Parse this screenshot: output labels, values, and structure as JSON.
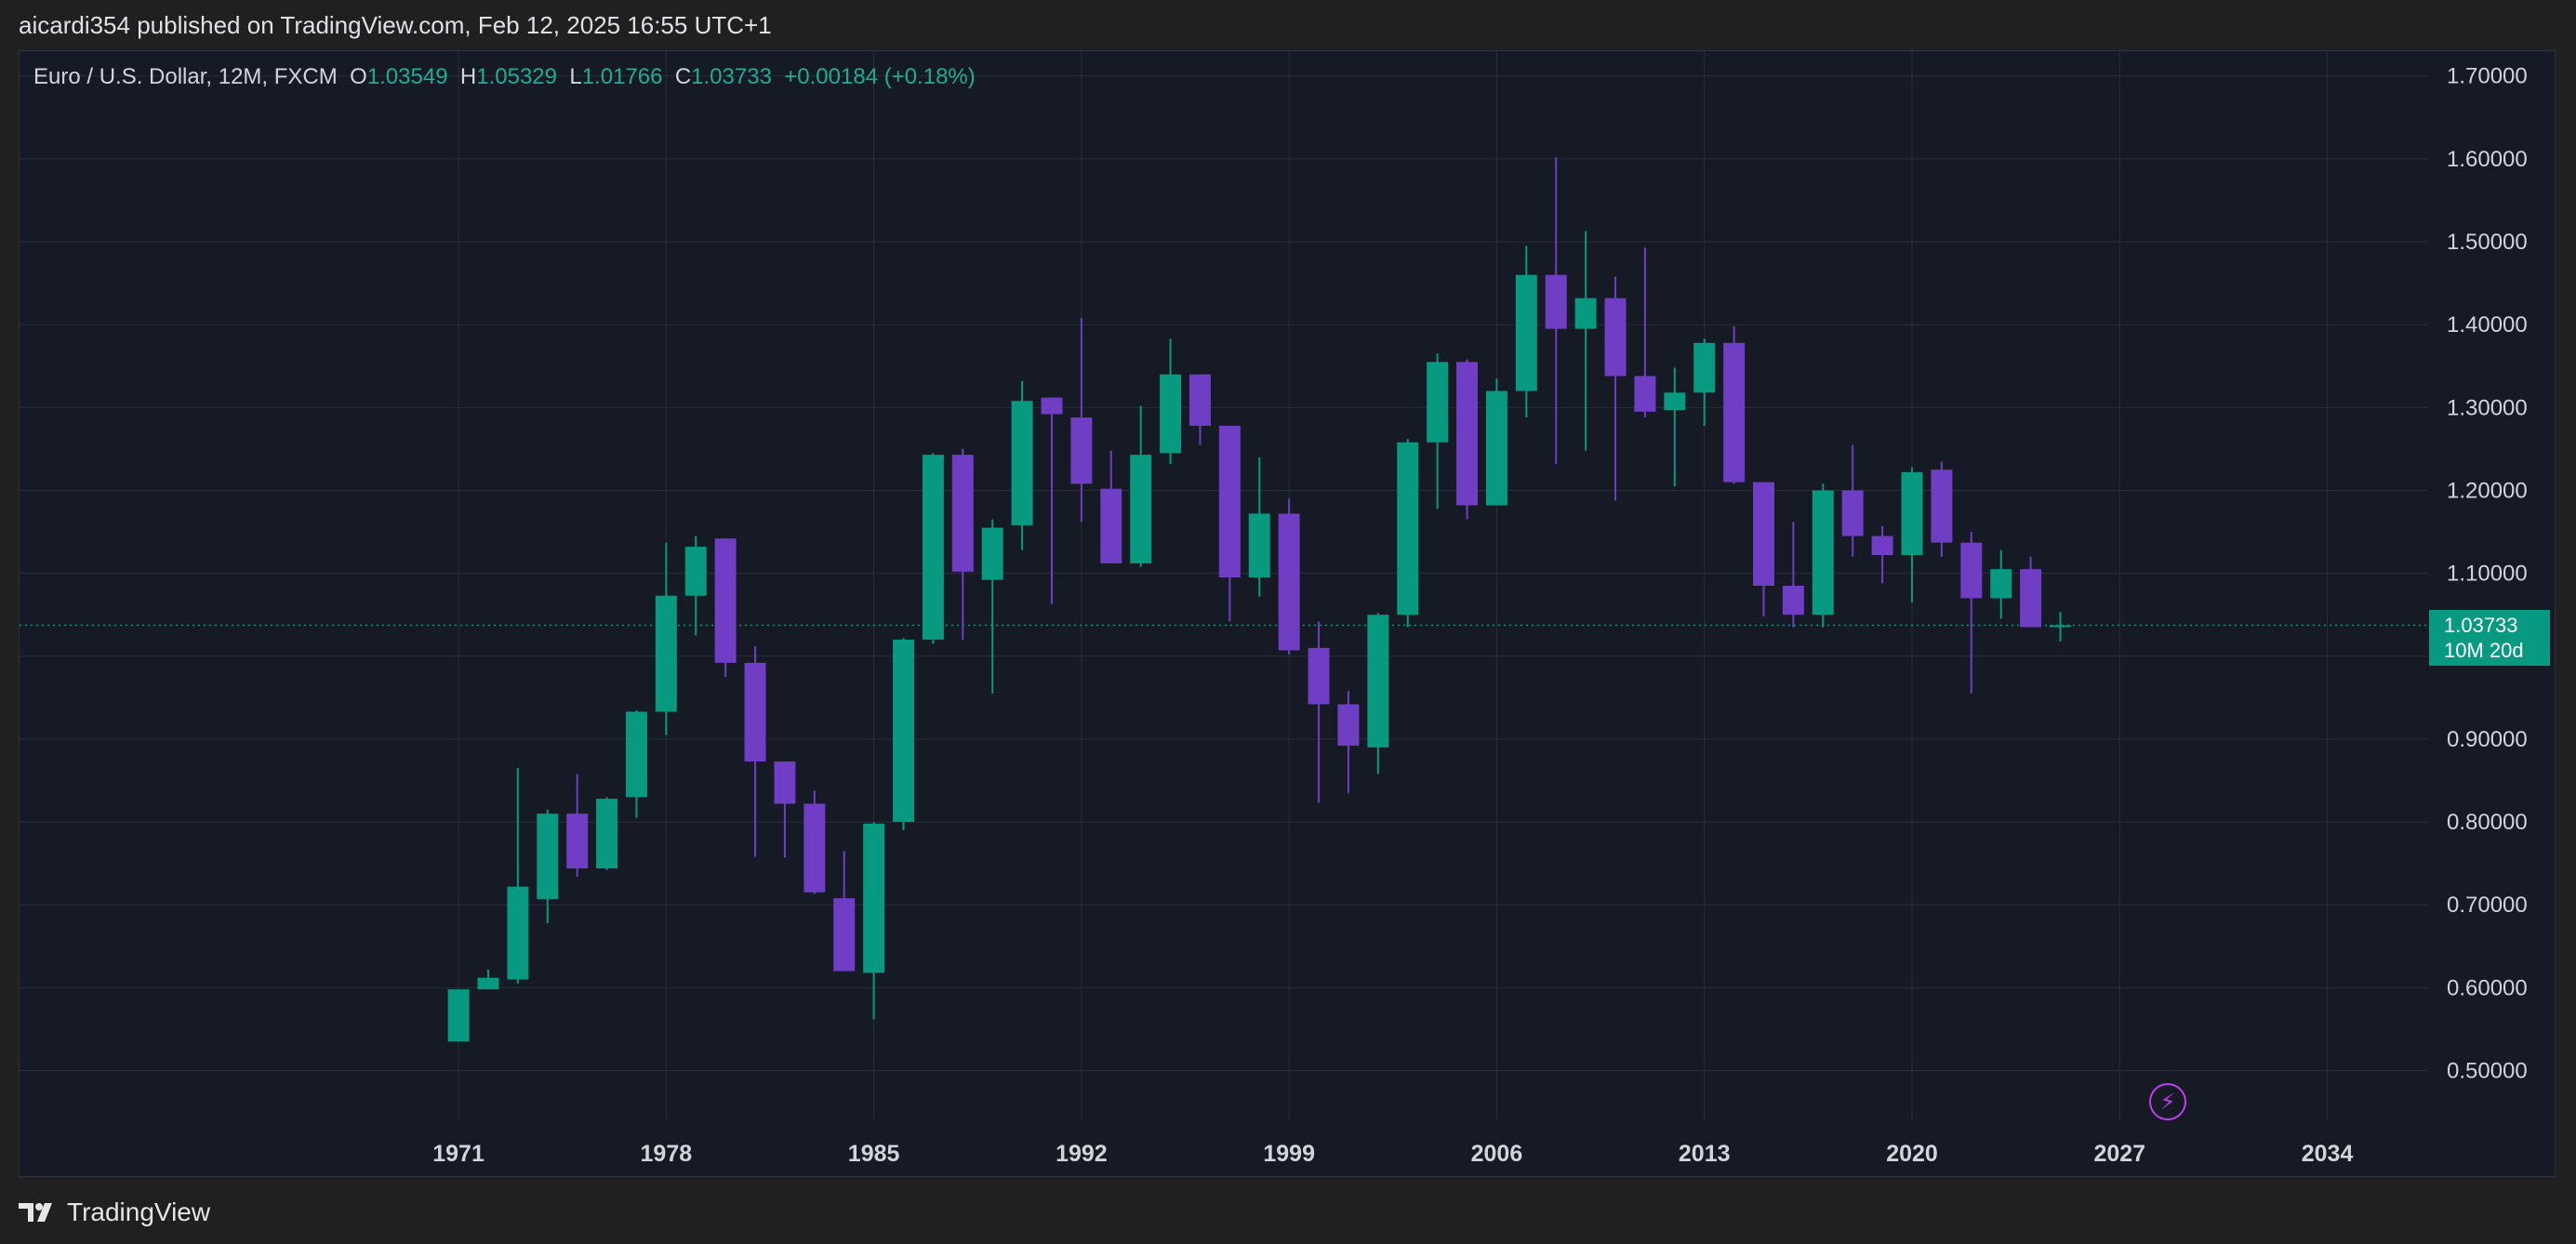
{
  "header": {
    "publish_line": "aicardi354 published on TradingView.com, Feb 12, 2025 16:55 UTC+1"
  },
  "legend": {
    "symbol": "Euro / U.S. Dollar, 12M, FXCM",
    "o_label": "O",
    "o_value": "1.03549",
    "h_label": "H",
    "h_value": "1.05329",
    "l_label": "L",
    "l_value": "1.01766",
    "c_label": "C",
    "c_value": "1.03733",
    "change": "+0.00184 (+0.18%)"
  },
  "price_tag": {
    "price": "1.03733",
    "countdown": "10M 20d"
  },
  "footer": {
    "brand": "TradingView"
  },
  "icons": {
    "alert": "lightning-icon",
    "logo": "tradingview-logo-icon"
  },
  "colors": {
    "up": "#089981",
    "down": "#6f3ec5",
    "background": "#161a25",
    "grid": "#2a2e39",
    "current_price_line": "#089981",
    "alert": "#c13ef0"
  },
  "chart_data": {
    "type": "candlestick",
    "ylim": [
      0.44,
      1.73
    ],
    "xlim": [
      1956.2,
      2037.4
    ],
    "y_ticks": [
      "0.50000",
      "0.60000",
      "0.70000",
      "0.80000",
      "0.90000",
      "1.00000",
      "1.10000",
      "1.20000",
      "1.30000",
      "1.40000",
      "1.50000",
      "1.60000",
      "1.70000"
    ],
    "y_tick_values": [
      0.5,
      0.6,
      0.7,
      0.8,
      0.9,
      1.0,
      1.1,
      1.2,
      1.3,
      1.4,
      1.5,
      1.6,
      1.7
    ],
    "x_ticks": [
      "1971",
      "1978",
      "1985",
      "1992",
      "1999",
      "2006",
      "2013",
      "2020",
      "2027",
      "2034"
    ],
    "x_tick_values": [
      1971,
      1978,
      1985,
      1992,
      1999,
      2006,
      2013,
      2020,
      2027,
      2034
    ],
    "current_price": 1.03733,
    "candles": [
      {
        "year": 1971,
        "o": 0.535,
        "h": 0.598,
        "l": 0.535,
        "c": 0.598
      },
      {
        "year": 1972,
        "o": 0.598,
        "h": 0.622,
        "l": 0.598,
        "c": 0.612
      },
      {
        "year": 1973,
        "o": 0.61,
        "h": 0.865,
        "l": 0.605,
        "c": 0.722
      },
      {
        "year": 1974,
        "o": 0.707,
        "h": 0.815,
        "l": 0.678,
        "c": 0.81
      },
      {
        "year": 1975,
        "o": 0.81,
        "h": 0.858,
        "l": 0.734,
        "c": 0.744
      },
      {
        "year": 1976,
        "o": 0.744,
        "h": 0.83,
        "l": 0.742,
        "c": 0.828
      },
      {
        "year": 1977,
        "o": 0.83,
        "h": 0.935,
        "l": 0.805,
        "c": 0.933
      },
      {
        "year": 1978,
        "o": 0.933,
        "h": 1.137,
        "l": 0.905,
        "c": 1.073
      },
      {
        "year": 1979,
        "o": 1.073,
        "h": 1.145,
        "l": 1.025,
        "c": 1.132
      },
      {
        "year": 1980,
        "o": 1.142,
        "h": 1.142,
        "l": 0.975,
        "c": 0.992
      },
      {
        "year": 1981,
        "o": 0.992,
        "h": 1.012,
        "l": 0.758,
        "c": 0.873
      },
      {
        "year": 1982,
        "o": 0.873,
        "h": 0.873,
        "l": 0.757,
        "c": 0.822
      },
      {
        "year": 1983,
        "o": 0.822,
        "h": 0.838,
        "l": 0.713,
        "c": 0.715
      },
      {
        "year": 1984,
        "o": 0.708,
        "h": 0.765,
        "l": 0.622,
        "c": 0.62
      },
      {
        "year": 1985,
        "o": 0.618,
        "h": 0.8,
        "l": 0.562,
        "c": 0.798
      },
      {
        "year": 1986,
        "o": 0.8,
        "h": 1.022,
        "l": 0.79,
        "c": 1.02
      },
      {
        "year": 1987,
        "o": 1.02,
        "h": 1.245,
        "l": 1.015,
        "c": 1.243
      },
      {
        "year": 1988,
        "o": 1.243,
        "h": 1.25,
        "l": 1.02,
        "c": 1.102
      },
      {
        "year": 1989,
        "o": 1.092,
        "h": 1.165,
        "l": 0.955,
        "c": 1.155
      },
      {
        "year": 1990,
        "o": 1.158,
        "h": 1.332,
        "l": 1.128,
        "c": 1.308
      },
      {
        "year": 1991,
        "o": 1.312,
        "h": 1.312,
        "l": 1.063,
        "c": 1.292
      },
      {
        "year": 1992,
        "o": 1.288,
        "h": 1.408,
        "l": 1.162,
        "c": 1.208
      },
      {
        "year": 1993,
        "o": 1.202,
        "h": 1.248,
        "l": 1.112,
        "c": 1.112
      },
      {
        "year": 1994,
        "o": 1.112,
        "h": 1.302,
        "l": 1.108,
        "c": 1.243
      },
      {
        "year": 1995,
        "o": 1.245,
        "h": 1.383,
        "l": 1.232,
        "c": 1.34
      },
      {
        "year": 1996,
        "o": 1.34,
        "h": 1.34,
        "l": 1.255,
        "c": 1.278
      },
      {
        "year": 1997,
        "o": 1.278,
        "h": 1.278,
        "l": 1.042,
        "c": 1.095
      },
      {
        "year": 1998,
        "o": 1.095,
        "h": 1.24,
        "l": 1.072,
        "c": 1.172
      },
      {
        "year": 1999,
        "o": 1.172,
        "h": 1.19,
        "l": 1.002,
        "c": 1.007
      },
      {
        "year": 2000,
        "o": 1.01,
        "h": 1.042,
        "l": 0.823,
        "c": 0.942
      },
      {
        "year": 2001,
        "o": 0.942,
        "h": 0.958,
        "l": 0.835,
        "c": 0.892
      },
      {
        "year": 2002,
        "o": 0.89,
        "h": 1.052,
        "l": 0.858,
        "c": 1.05
      },
      {
        "year": 2003,
        "o": 1.05,
        "h": 1.262,
        "l": 1.035,
        "c": 1.258
      },
      {
        "year": 2004,
        "o": 1.258,
        "h": 1.365,
        "l": 1.178,
        "c": 1.355
      },
      {
        "year": 2005,
        "o": 1.355,
        "h": 1.358,
        "l": 1.165,
        "c": 1.182
      },
      {
        "year": 2006,
        "o": 1.182,
        "h": 1.335,
        "l": 1.182,
        "c": 1.32
      },
      {
        "year": 2007,
        "o": 1.32,
        "h": 1.495,
        "l": 1.288,
        "c": 1.46
      },
      {
        "year": 2008,
        "o": 1.46,
        "h": 1.602,
        "l": 1.232,
        "c": 1.395
      },
      {
        "year": 2009,
        "o": 1.395,
        "h": 1.513,
        "l": 1.248,
        "c": 1.432
      },
      {
        "year": 2010,
        "o": 1.432,
        "h": 1.458,
        "l": 1.188,
        "c": 1.338
      },
      {
        "year": 2011,
        "o": 1.338,
        "h": 1.493,
        "l": 1.288,
        "c": 1.295
      },
      {
        "year": 2012,
        "o": 1.297,
        "h": 1.348,
        "l": 1.205,
        "c": 1.318
      },
      {
        "year": 2013,
        "o": 1.318,
        "h": 1.383,
        "l": 1.278,
        "c": 1.378
      },
      {
        "year": 2014,
        "o": 1.378,
        "h": 1.398,
        "l": 1.208,
        "c": 1.21
      },
      {
        "year": 2015,
        "o": 1.21,
        "h": 1.21,
        "l": 1.048,
        "c": 1.085
      },
      {
        "year": 2016,
        "o": 1.085,
        "h": 1.162,
        "l": 1.035,
        "c": 1.05
      },
      {
        "year": 2017,
        "o": 1.05,
        "h": 1.208,
        "l": 1.035,
        "c": 1.2
      },
      {
        "year": 2018,
        "o": 1.2,
        "h": 1.255,
        "l": 1.12,
        "c": 1.145
      },
      {
        "year": 2019,
        "o": 1.145,
        "h": 1.157,
        "l": 1.088,
        "c": 1.122
      },
      {
        "year": 2020,
        "o": 1.122,
        "h": 1.228,
        "l": 1.065,
        "c": 1.222
      },
      {
        "year": 2021,
        "o": 1.225,
        "h": 1.235,
        "l": 1.12,
        "c": 1.137
      },
      {
        "year": 2022,
        "o": 1.137,
        "h": 1.15,
        "l": 0.955,
        "c": 1.07
      },
      {
        "year": 2023,
        "o": 1.07,
        "h": 1.128,
        "l": 1.045,
        "c": 1.105
      },
      {
        "year": 2024,
        "o": 1.105,
        "h": 1.12,
        "l": 1.035,
        "c": 1.035
      },
      {
        "year": 2025,
        "o": 1.03549,
        "h": 1.05329,
        "l": 1.01766,
        "c": 1.03733
      }
    ]
  }
}
